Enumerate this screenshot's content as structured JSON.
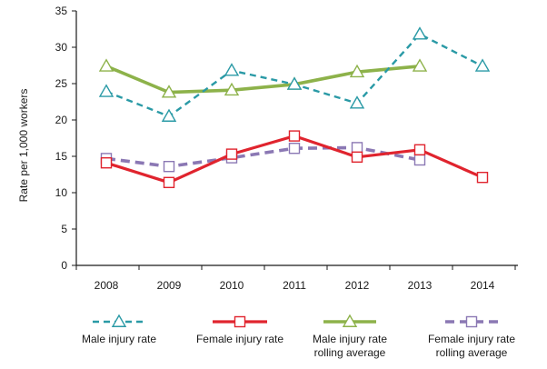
{
  "chart_data": {
    "type": "line",
    "title": "",
    "xlabel": "",
    "ylabel": "Rate per 1,000 workers",
    "ylim": [
      0,
      35
    ],
    "yticks": [
      0,
      5,
      10,
      15,
      20,
      25,
      30,
      35
    ],
    "categories": [
      "2008",
      "2009",
      "2010",
      "2011",
      "2012",
      "2013",
      "2014"
    ],
    "grid": false,
    "legend_position": "bottom",
    "series": [
      {
        "name": "Male injury rate",
        "legend_lines": [
          "Male injury rate"
        ],
        "values": [
          23.9,
          20.5,
          26.8,
          24.9,
          22.3,
          31.8,
          27.4
        ],
        "color": "#2a9aa6",
        "style": "dashed",
        "marker": "triangle"
      },
      {
        "name": "Female injury rate",
        "legend_lines": [
          "Female injury rate"
        ],
        "values": [
          14.1,
          11.4,
          15.3,
          17.8,
          14.9,
          15.9,
          12.1
        ],
        "color": "#e0242e",
        "style": "solid",
        "marker": "square"
      },
      {
        "name": "Male injury rate rolling average",
        "legend_lines": [
          "Male injury rate",
          "rolling average"
        ],
        "values": [
          27.4,
          23.8,
          24.1,
          24.9,
          26.6,
          27.4,
          null
        ],
        "color": "#8db24a",
        "style": "solid",
        "marker": "triangle"
      },
      {
        "name": "Female injury rate rolling average",
        "legend_lines": [
          "Female injury rate",
          "rolling average"
        ],
        "values": [
          14.7,
          13.6,
          14.8,
          16.1,
          16.2,
          14.5,
          null
        ],
        "color": "#8b78b4",
        "style": "dashed",
        "marker": "square"
      }
    ]
  }
}
